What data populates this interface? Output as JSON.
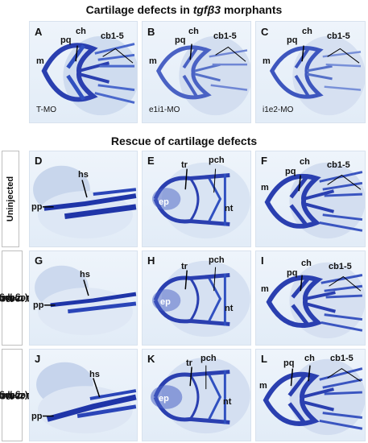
{
  "titles": {
    "top_prefix": "Cartilage defects in ",
    "top_gene": "tgfβ3",
    "top_suffix": " morphants",
    "rescue": "Rescue of cartilage defects"
  },
  "row_labels": {
    "uninjected": "Uninjected",
    "rescue100_a": "i1e2-MO + ",
    "rescue100_gene": "tgfβ3",
    "rescue100_dose": "(100pg)",
    "rescue200_a": "i1e2-MO + ",
    "rescue200_gene": "tgfβ3",
    "rescue200_dose": "(200pg)"
  },
  "panels": {
    "A": {
      "letter": "A",
      "m": "m",
      "pq": "pq",
      "ch": "ch",
      "cb": "cb1-5",
      "condition": "T-MO"
    },
    "B": {
      "letter": "B",
      "m": "m",
      "pq": "pq",
      "ch": "ch",
      "cb": "cb1-5",
      "condition": "e1i1-MO"
    },
    "C": {
      "letter": "C",
      "m": "m",
      "pq": "pq",
      "ch": "ch",
      "cb": "cb1-5",
      "condition": "i1e2-MO"
    },
    "D": {
      "letter": "D",
      "hs": "hs",
      "pp": "pp"
    },
    "E": {
      "letter": "E",
      "tr": "tr",
      "pch": "pch",
      "ep": "ep",
      "nt": "nt"
    },
    "F": {
      "letter": "F",
      "m": "m",
      "pq": "pq",
      "ch": "ch",
      "cb": "cb1-5"
    },
    "G": {
      "letter": "G",
      "hs": "hs",
      "pp": "pp"
    },
    "H": {
      "letter": "H",
      "tr": "tr",
      "pch": "pch",
      "ep": "ep",
      "nt": "nt"
    },
    "I": {
      "letter": "I",
      "m": "m",
      "pq": "pq",
      "ch": "ch",
      "cb": "cb1-5"
    },
    "J": {
      "letter": "J",
      "hs": "hs",
      "pp": "pp"
    },
    "K": {
      "letter": "K",
      "tr": "tr",
      "pch": "pch",
      "ep": "ep",
      "nt": "nt"
    },
    "L": {
      "letter": "L",
      "m": "m",
      "pq": "pq",
      "ch": "ch",
      "cb": "cb1-5"
    }
  },
  "colors": {
    "cartilage": "#2a3fb0",
    "cartilage_light": "#5b78d2",
    "panel_bg": "#e6eef8",
    "label_text": "#111111"
  }
}
